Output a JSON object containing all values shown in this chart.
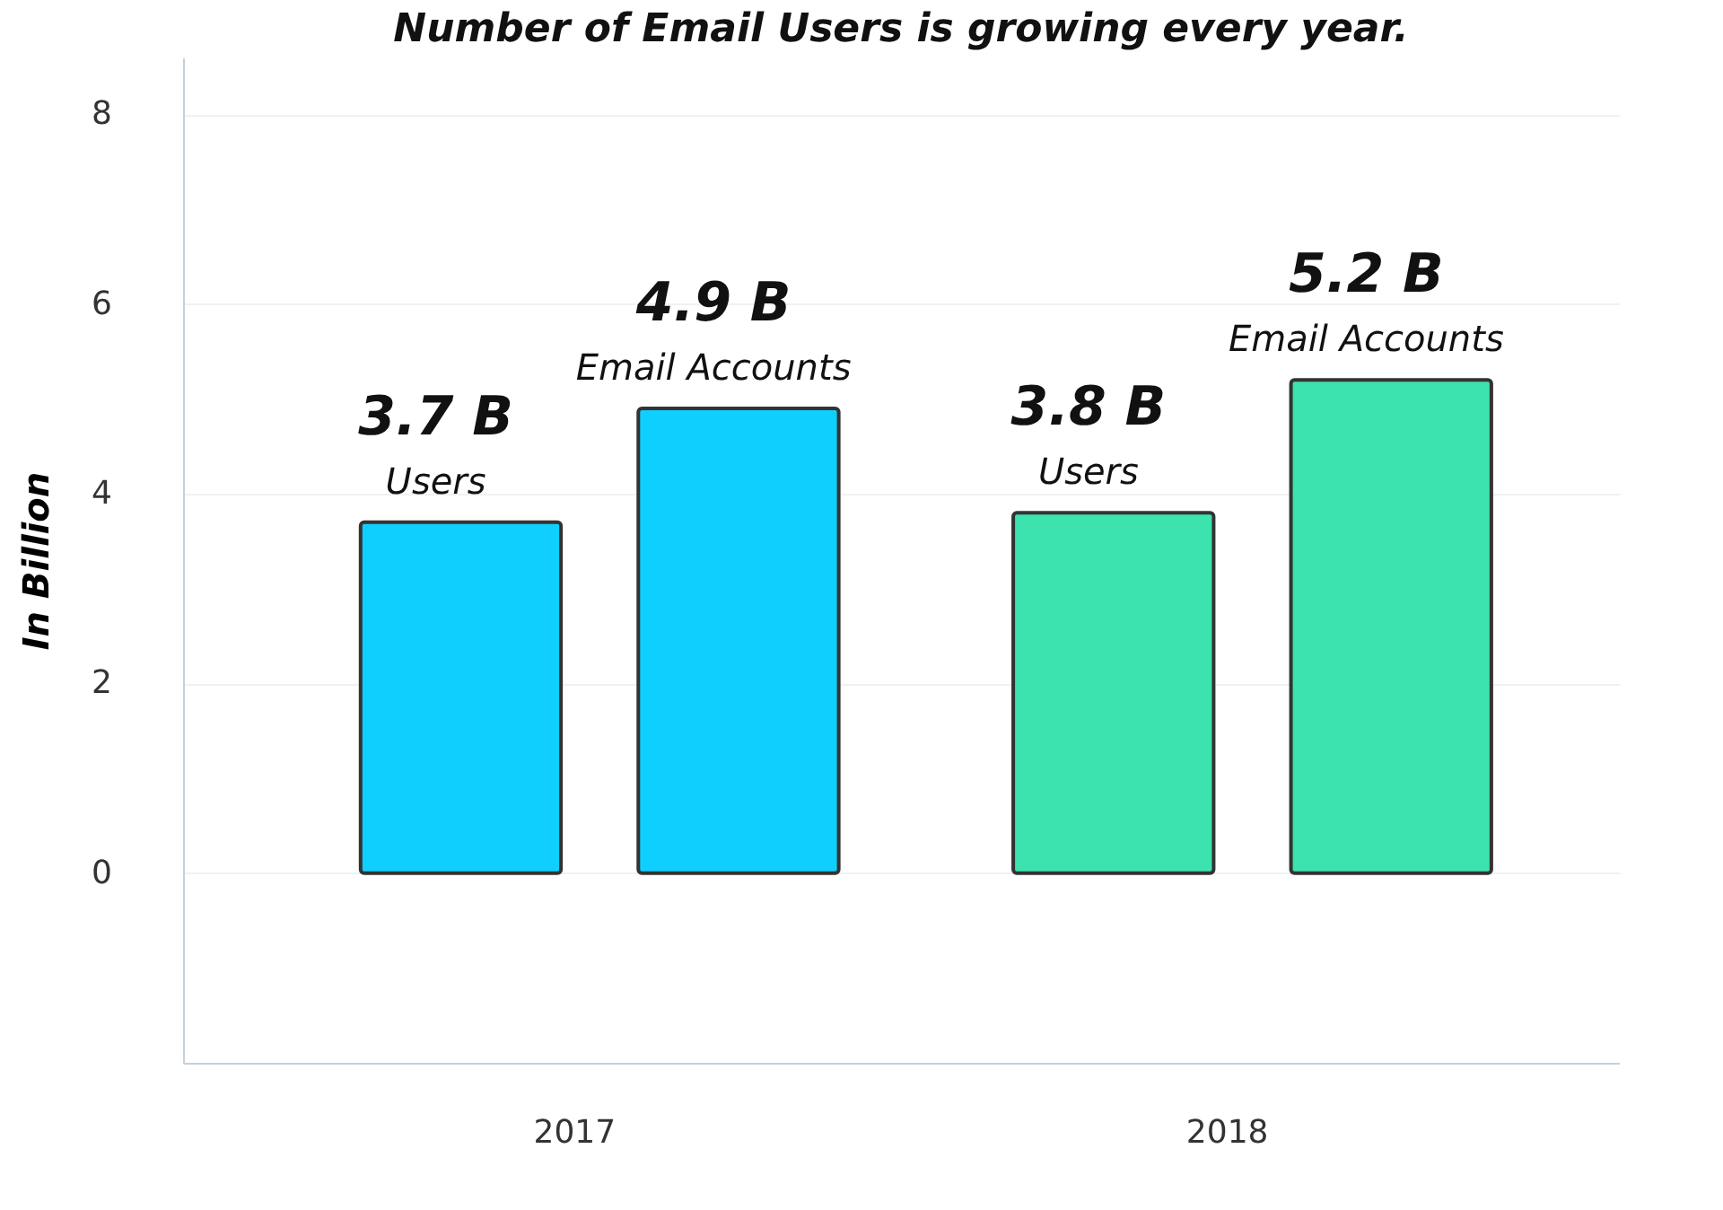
{
  "chart_data": {
    "type": "bar",
    "title": "Number of Email Users is growing every year.",
    "ylabel": "In Billion",
    "categories": [
      "2017",
      "2018"
    ],
    "series": [
      {
        "name": "Users",
        "colors": [
          "#0fcffe",
          "#3ce3ae"
        ],
        "values": [
          3.7,
          3.8
        ],
        "value_labels": [
          "3.7 B",
          "3.8 B"
        ]
      },
      {
        "name": "Email Accounts",
        "colors": [
          "#0fcffe",
          "#3ce3ae"
        ],
        "values": [
          4.9,
          5.2
        ],
        "value_labels": [
          "4.9 B",
          "5.2 B"
        ]
      }
    ],
    "ylim": [
      -2,
      8.6
    ],
    "yticks": [
      0,
      2,
      4,
      6,
      8
    ],
    "grid": "y",
    "legend": false
  }
}
